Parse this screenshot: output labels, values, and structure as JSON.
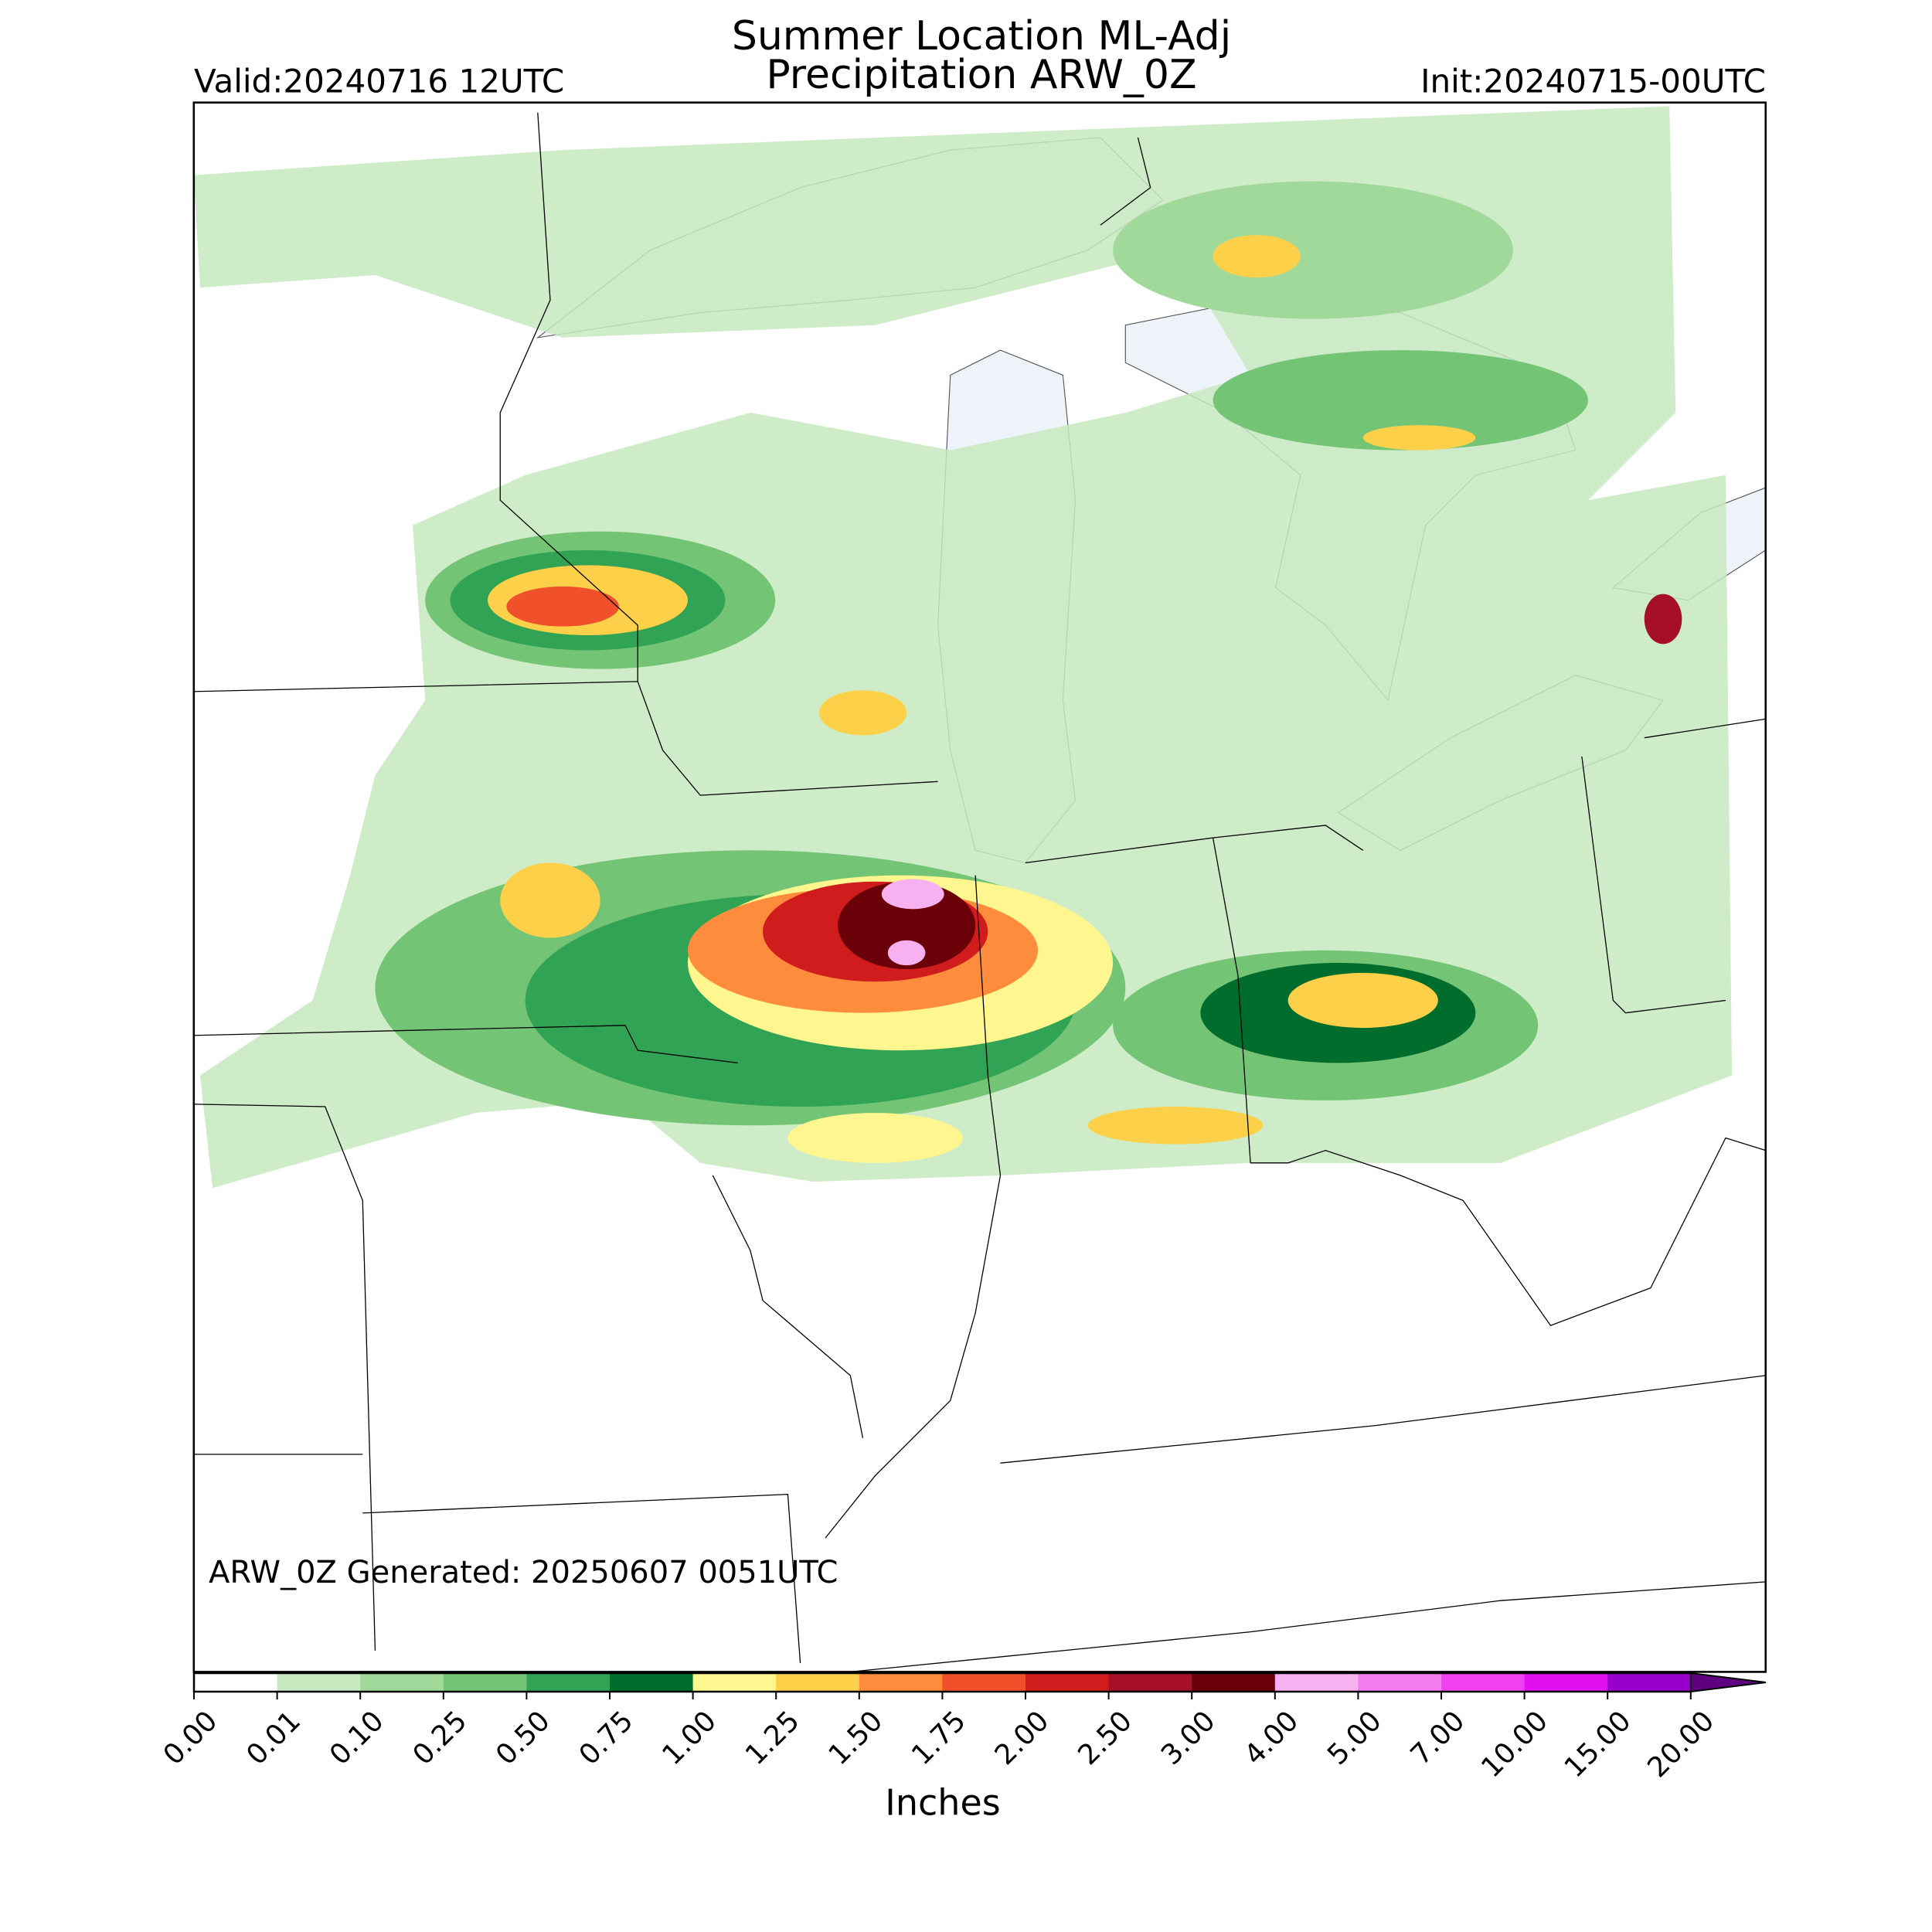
{
  "header": {
    "title_lines": [
      "Summer Location ML-Adj",
      "Precipitation ARW_0Z"
    ],
    "valid": "Valid:20240716 12UTC",
    "init": "Init:20240715-00UTC"
  },
  "footnote": "ARW_0Z Generated: 20250607 0051UTC",
  "colorbar": {
    "label": "Inches",
    "extend": "max",
    "ticks": [
      {
        "value": 0,
        "label": "0.00"
      },
      {
        "value": 0.01,
        "label": "0.01"
      },
      {
        "value": 0.1,
        "label": "0.10"
      },
      {
        "value": 0.25,
        "label": "0.25"
      },
      {
        "value": 0.5,
        "label": "0.50"
      },
      {
        "value": 0.75,
        "label": "0.75"
      },
      {
        "value": 1,
        "label": "1.00"
      },
      {
        "value": 1.25,
        "label": "1.25"
      },
      {
        "value": 1.5,
        "label": "1.50"
      },
      {
        "value": 1.75,
        "label": "1.75"
      },
      {
        "value": 2,
        "label": "2.00"
      },
      {
        "value": 2.5,
        "label": "2.50"
      },
      {
        "value": 3,
        "label": "3.00"
      },
      {
        "value": 4,
        "label": "4.00"
      },
      {
        "value": 5,
        "label": "5.00"
      },
      {
        "value": 7,
        "label": "7.00"
      },
      {
        "value": 10,
        "label": "10.00"
      },
      {
        "value": 15,
        "label": "15.00"
      },
      {
        "value": 20,
        "label": "20.00"
      }
    ],
    "colors": [
      "#ffffff",
      "#c7e9c0",
      "#a1d99b",
      "#74c476",
      "#31a354",
      "#006d2c",
      "#fff68f",
      "#fdd049",
      "#fd8d3c",
      "#f0502a",
      "#d01c1c",
      "#a50f2a",
      "#6a0008",
      "#f7b0f0",
      "#f47cf0",
      "#f040f0",
      "#e010f0",
      "#9a00cc"
    ],
    "extend_color": "#5e0080"
  }
}
